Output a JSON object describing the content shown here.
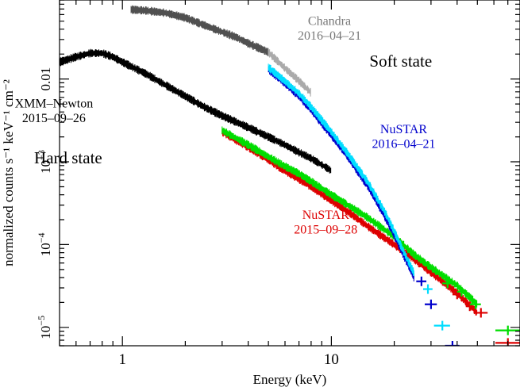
{
  "chart_data": {
    "type": "scatter",
    "xlabel": "Energy (keV)",
    "ylabel": "normalized counts s⁻¹ keV⁻¹ cm⁻²",
    "x_scale": "log",
    "y_scale": "log",
    "xlim": [
      0.5,
      80
    ],
    "ylim": [
      6e-06,
      0.09
    ],
    "x_ticklabels": [
      {
        "value": 1,
        "label": "1"
      },
      {
        "value": 10,
        "label": "10"
      }
    ],
    "y_ticklabels": [
      {
        "value": 1e-05,
        "base": "10",
        "exp": "−5"
      },
      {
        "value": 0.0001,
        "base": "10",
        "exp": "−4"
      },
      {
        "value": 0.001,
        "base": "10",
        "exp": "−3"
      },
      {
        "value": 0.01,
        "base": "0.01",
        "exp": ""
      }
    ],
    "annotations": [
      {
        "id": "chandra",
        "lines": [
          "Chandra",
          "2016–04–21"
        ],
        "x": 9.8,
        "y": 0.0447,
        "color": "#777777",
        "size": 16
      },
      {
        "id": "soft",
        "lines": [
          "Soft state"
        ],
        "x": 21.5,
        "y": 0.01407,
        "color": "#000000",
        "size": 21
      },
      {
        "id": "xmm",
        "lines": [
          "XMM–Newton",
          "2015–09–26"
        ],
        "x": 0.47,
        "y": 0.00452,
        "color": "#000000",
        "size": 16
      },
      {
        "id": "nustar-soft",
        "lines": [
          "NuSTAR",
          "2016–04–21"
        ],
        "x": 22.2,
        "y": 0.00221,
        "color": "#0000cc",
        "size": 16
      },
      {
        "id": "hard",
        "lines": [
          "Hard state"
        ],
        "x": 0.55,
        "y": 0.00096,
        "color": "#000000",
        "size": 21
      },
      {
        "id": "nustar-hard",
        "lines": [
          "NuSTAR",
          "2015–09–28"
        ],
        "x": 9.4,
        "y": 0.000205,
        "color": "#dd0000",
        "size": 16
      }
    ],
    "series": [
      {
        "id": "chandra-dark",
        "color": "#505050",
        "x": [
          1.1,
          1.3,
          1.6,
          2.0,
          2.5,
          3.0,
          3.5,
          4.0,
          5.0
        ],
        "y": [
          0.069,
          0.067,
          0.063,
          0.055,
          0.044,
          0.037,
          0.032,
          0.027,
          0.021
        ]
      },
      {
        "id": "chandra-light",
        "color": "#aaaaaa",
        "x": [
          5.0,
          6.0,
          7.0,
          8.0
        ],
        "y": [
          0.021,
          0.0135,
          0.0095,
          0.0068
        ]
      },
      {
        "id": "xmm",
        "color": "#000000",
        "x": [
          0.5,
          0.6,
          0.7,
          0.8,
          0.9,
          1.0,
          1.3,
          1.6,
          2.0,
          2.5,
          3.0,
          4.0,
          5.0,
          6.0,
          7.0,
          8.0,
          9.0,
          10.0
        ],
        "y": [
          0.016,
          0.0185,
          0.0205,
          0.0205,
          0.0185,
          0.016,
          0.0115,
          0.0085,
          0.0062,
          0.0045,
          0.0036,
          0.0026,
          0.002,
          0.0016,
          0.0013,
          0.0011,
          0.00092,
          0.00078
        ]
      },
      {
        "id": "nustar-hard-red",
        "color": "#dd0000",
        "x": [
          3,
          4,
          5,
          6,
          7,
          8,
          10,
          12,
          15,
          20,
          25,
          30,
          40,
          50
        ],
        "y": [
          0.0023,
          0.0015,
          0.00105,
          0.00078,
          0.00062,
          0.0005,
          0.00034,
          0.00025,
          0.000165,
          0.0001,
          6.6e-05,
          4.6e-05,
          2.6e-05,
          1.5e-05
        ]
      },
      {
        "id": "nustar-hard-green",
        "color": "#00dd00",
        "x": [
          3,
          4,
          5,
          6,
          7,
          8,
          10,
          12,
          15,
          20,
          25,
          30,
          40,
          50
        ],
        "y": [
          0.0024,
          0.0016,
          0.00115,
          0.00088,
          0.00072,
          0.00058,
          0.0004,
          0.0003,
          0.00021,
          0.000125,
          7.5e-05,
          5.3e-05,
          3.2e-05,
          1.9e-05
        ]
      },
      {
        "id": "nustar-soft-blue",
        "color": "#0000cc",
        "x": [
          5,
          6,
          7,
          8,
          10,
          12,
          15,
          18,
          20,
          22,
          25
        ],
        "y": [
          0.013,
          0.0089,
          0.0062,
          0.0042,
          0.0021,
          0.00115,
          0.0005,
          0.00022,
          0.00013,
          7.8e-05,
          3.9e-05
        ]
      },
      {
        "id": "nustar-soft-cyan",
        "color": "#00ddff",
        "x": [
          5,
          6,
          7,
          8,
          10,
          12,
          15,
          18,
          20,
          22,
          25
        ],
        "y": [
          0.0138,
          0.0094,
          0.0067,
          0.0046,
          0.0023,
          0.00125,
          0.00056,
          0.00025,
          0.000145,
          8.6e-05,
          4.4e-05
        ]
      }
    ],
    "binned_points": [
      {
        "color": "#0000cc",
        "x": 27,
        "y": 3.6e-05,
        "xl": 25.5,
        "xh": 28.5
      },
      {
        "color": "#0000cc",
        "x": 30,
        "y": 1.9e-05,
        "xl": 28,
        "xh": 32
      },
      {
        "color": "#0000cc",
        "x": 38,
        "y": 6e-06,
        "xl": 35,
        "xh": 41
      },
      {
        "color": "#00ddff",
        "x": 29,
        "y": 2.9e-05,
        "xl": 27.5,
        "xh": 30.5
      },
      {
        "color": "#00ddff",
        "x": 34,
        "y": 1.05e-05,
        "xl": 31,
        "xh": 37
      },
      {
        "color": "#dd0000",
        "x": 40,
        "y": 2.5e-05,
        "xl": 38,
        "xh": 42
      },
      {
        "color": "#dd0000",
        "x": 46,
        "y": 1.8e-05,
        "xl": 44,
        "xh": 48
      },
      {
        "color": "#dd0000",
        "x": 52,
        "y": 1.5e-05,
        "xl": 48,
        "xh": 56
      },
      {
        "color": "#dd0000",
        "x": 70,
        "y": 6.5e-06,
        "xl": 61,
        "xh": 80
      },
      {
        "color": "#00dd00",
        "x": 36,
        "y": 3.4e-05,
        "xl": 34,
        "xh": 38
      },
      {
        "color": "#00dd00",
        "x": 42,
        "y": 2.7e-05,
        "xl": 40,
        "xh": 44
      },
      {
        "color": "#00dd00",
        "x": 49,
        "y": 1.9e-05,
        "xl": 46,
        "xh": 52
      },
      {
        "color": "#00dd00",
        "x": 70,
        "y": 9.2e-06,
        "xl": 61,
        "xh": 80
      }
    ]
  }
}
